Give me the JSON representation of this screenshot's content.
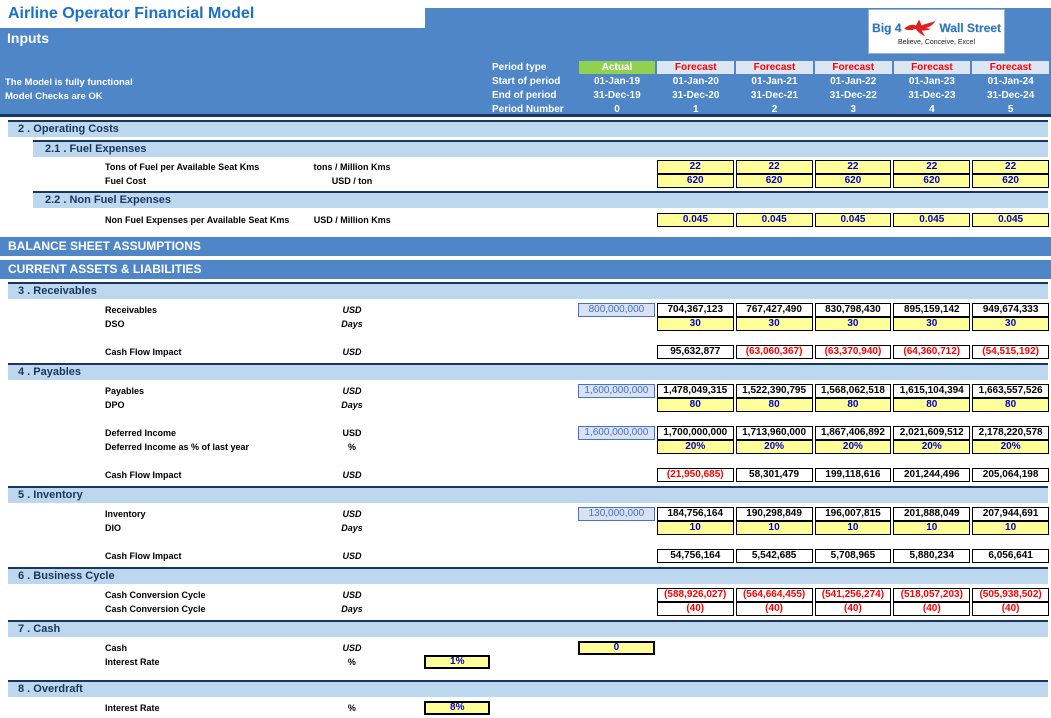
{
  "app": {
    "title": "Airline Operator Financial Model",
    "sheet_title": "Inputs",
    "status_line1": "The Model is fully functional",
    "status_line2": "Model Checks are OK"
  },
  "logo": {
    "brand_left": "Big 4",
    "brand_right": "Wall Street",
    "tagline": "Believe, Conceive, Excel"
  },
  "colors": {
    "banner_blue": "#4E86C8",
    "navy_rule": "#17375E",
    "section_bar": "#BDD7EE",
    "actual_green": "#92D050",
    "forecast_bg": "#DCE6F2",
    "forecast_text": "#FF0000",
    "input_bg": "#FFFF99",
    "input_text": "#0000CC",
    "linked_bg": "#D9E1F2",
    "linked_accent": "#4472C4",
    "negative_red": "#FF0000",
    "title_blue": "#1C70C9"
  },
  "period_header": {
    "labels": [
      "Period type",
      "Start of period",
      "End of period",
      "Period Number"
    ],
    "types": [
      "Actual",
      "Forecast",
      "Forecast",
      "Forecast",
      "Forecast",
      "Forecast"
    ],
    "start_dates": [
      "01-Jan-19",
      "01-Jan-20",
      "01-Jan-21",
      "01-Jan-22",
      "01-Jan-23",
      "01-Jan-24"
    ],
    "end_dates": [
      "31-Dec-19",
      "31-Dec-20",
      "31-Dec-21",
      "31-Dec-22",
      "31-Dec-23",
      "31-Dec-24"
    ],
    "numbers": [
      "0",
      "1",
      "2",
      "3",
      "4",
      "5"
    ]
  },
  "sections": [
    {
      "kind": "h1",
      "id": "operating-costs",
      "title": "2 . Operating Costs"
    },
    {
      "kind": "h2",
      "id": "fuel-expenses",
      "title": "2.1 . Fuel Expenses"
    },
    {
      "kind": "rows",
      "id": "fuel-rows",
      "rows": [
        {
          "label": "Tons of Fuel per Available Seat Kms",
          "unit": "tons / Million Kms",
          "unit_italic": false,
          "cells": [
            null,
            {
              "v": "22",
              "t": "input"
            },
            {
              "v": "22",
              "t": "input"
            },
            {
              "v": "22",
              "t": "input"
            },
            {
              "v": "22",
              "t": "input"
            },
            {
              "v": "22",
              "t": "input"
            }
          ]
        },
        {
          "label": "Fuel Cost",
          "unit": "USD / ton",
          "unit_italic": false,
          "cells": [
            null,
            {
              "v": "620",
              "t": "input"
            },
            {
              "v": "620",
              "t": "input"
            },
            {
              "v": "620",
              "t": "input"
            },
            {
              "v": "620",
              "t": "input"
            },
            {
              "v": "620",
              "t": "input"
            }
          ]
        }
      ]
    },
    {
      "kind": "h2",
      "id": "non-fuel-expenses",
      "title": "2.2 . Non Fuel Expenses"
    },
    {
      "kind": "rows",
      "id": "non-fuel-rows",
      "rows": [
        {
          "label": "Non Fuel Expenses per Available Seat Kms",
          "unit": "USD /  Million Kms",
          "unit_italic": false,
          "cells": [
            null,
            {
              "v": "0.045",
              "t": "input"
            },
            {
              "v": "0.045",
              "t": "input"
            },
            {
              "v": "0.045",
              "t": "input"
            },
            {
              "v": "0.045",
              "t": "input"
            },
            {
              "v": "0.045",
              "t": "input"
            }
          ]
        }
      ]
    },
    {
      "kind": "banner",
      "id": "balance-sheet-assumptions",
      "title": "BALANCE SHEET ASSUMPTIONS"
    },
    {
      "kind": "banner",
      "id": "current-assets-liabilities",
      "title": "CURRENT ASSETS & LIABILITIES"
    },
    {
      "kind": "h1",
      "id": "receivables",
      "title": "3 . Receivables"
    },
    {
      "kind": "rows",
      "id": "receivables-rows",
      "rows": [
        {
          "label": "Receivables",
          "unit": "USD",
          "unit_italic": true,
          "cells": [
            {
              "v": "800,000,000",
              "t": "linked"
            },
            {
              "v": "704,367,123",
              "t": "calc"
            },
            {
              "v": "767,427,490",
              "t": "calc"
            },
            {
              "v": "830,798,430",
              "t": "calc"
            },
            {
              "v": "895,159,142",
              "t": "calc"
            },
            {
              "v": "949,674,333",
              "t": "calc"
            }
          ]
        },
        {
          "label": "DSO",
          "unit": "Days",
          "unit_italic": true,
          "cells": [
            null,
            {
              "v": "30",
              "t": "input"
            },
            {
              "v": "30",
              "t": "input"
            },
            {
              "v": "30",
              "t": "input"
            },
            {
              "v": "30",
              "t": "input"
            },
            {
              "v": "30",
              "t": "input"
            }
          ]
        },
        {
          "spacer": true
        },
        {
          "label": "Cash Flow Impact",
          "unit": "USD",
          "unit_italic": true,
          "cells": [
            null,
            {
              "v": "95,632,877",
              "t": "calc"
            },
            {
              "v": "(63,060,367)",
              "t": "neg"
            },
            {
              "v": "(63,370,940)",
              "t": "neg"
            },
            {
              "v": "(64,360,712)",
              "t": "neg"
            },
            {
              "v": "(54,515,192)",
              "t": "neg"
            }
          ]
        }
      ]
    },
    {
      "kind": "h1",
      "id": "payables",
      "title": "4 . Payables"
    },
    {
      "kind": "rows",
      "id": "payables-rows",
      "rows": [
        {
          "label": "Payables",
          "unit": "USD",
          "unit_italic": true,
          "cells": [
            {
              "v": "1,600,000,000",
              "t": "linked"
            },
            {
              "v": "1,478,049,315",
              "t": "calc"
            },
            {
              "v": "1,522,390,795",
              "t": "calc"
            },
            {
              "v": "1,568,062,518",
              "t": "calc"
            },
            {
              "v": "1,615,104,394",
              "t": "calc"
            },
            {
              "v": "1,663,557,526",
              "t": "calc"
            }
          ]
        },
        {
          "label": "DPO",
          "unit": "Days",
          "unit_italic": true,
          "cells": [
            null,
            {
              "v": "80",
              "t": "input"
            },
            {
              "v": "80",
              "t": "input"
            },
            {
              "v": "80",
              "t": "input"
            },
            {
              "v": "80",
              "t": "input"
            },
            {
              "v": "80",
              "t": "input"
            }
          ]
        },
        {
          "spacer": true
        },
        {
          "label": "Deferred Income",
          "unit": "USD",
          "unit_italic": false,
          "cells": [
            {
              "v": "1,600,000,000",
              "t": "linked"
            },
            {
              "v": "1,700,000,000",
              "t": "calc"
            },
            {
              "v": "1,713,960,000",
              "t": "calc"
            },
            {
              "v": "1,867,406,892",
              "t": "calc"
            },
            {
              "v": "2,021,609,512",
              "t": "calc"
            },
            {
              "v": "2,178,220,578",
              "t": "calc"
            }
          ]
        },
        {
          "label": "Deferred Income as % of last year",
          "unit": "%",
          "unit_italic": false,
          "cells": [
            null,
            {
              "v": "20%",
              "t": "input"
            },
            {
              "v": "20%",
              "t": "input"
            },
            {
              "v": "20%",
              "t": "input"
            },
            {
              "v": "20%",
              "t": "input"
            },
            {
              "v": "20%",
              "t": "input"
            }
          ]
        },
        {
          "spacer": true
        },
        {
          "label": "Cash Flow Impact",
          "unit": "USD",
          "unit_italic": true,
          "cells": [
            null,
            {
              "v": "(21,950,685)",
              "t": "neg"
            },
            {
              "v": "58,301,479",
              "t": "calc"
            },
            {
              "v": "199,118,616",
              "t": "calc"
            },
            {
              "v": "201,244,496",
              "t": "calc"
            },
            {
              "v": "205,064,198",
              "t": "calc"
            }
          ]
        }
      ]
    },
    {
      "kind": "h1",
      "id": "inventory",
      "title": "5 . Inventory"
    },
    {
      "kind": "rows",
      "id": "inventory-rows",
      "rows": [
        {
          "label": "Inventory",
          "unit": "USD",
          "unit_italic": true,
          "cells": [
            {
              "v": "130,000,000",
              "t": "linked"
            },
            {
              "v": "184,756,164",
              "t": "calc"
            },
            {
              "v": "190,298,849",
              "t": "calc"
            },
            {
              "v": "196,007,815",
              "t": "calc"
            },
            {
              "v": "201,888,049",
              "t": "calc"
            },
            {
              "v": "207,944,691",
              "t": "calc"
            }
          ]
        },
        {
          "label": "DIO",
          "unit": "Days",
          "unit_italic": true,
          "cells": [
            null,
            {
              "v": "10",
              "t": "input"
            },
            {
              "v": "10",
              "t": "input"
            },
            {
              "v": "10",
              "t": "input"
            },
            {
              "v": "10",
              "t": "input"
            },
            {
              "v": "10",
              "t": "input"
            }
          ]
        },
        {
          "spacer": true
        },
        {
          "label": "Cash Flow Impact",
          "unit": "USD",
          "unit_italic": true,
          "cells": [
            null,
            {
              "v": "54,756,164",
              "t": "calc"
            },
            {
              "v": "5,542,685",
              "t": "calc"
            },
            {
              "v": "5,708,965",
              "t": "calc"
            },
            {
              "v": "5,880,234",
              "t": "calc"
            },
            {
              "v": "6,056,641",
              "t": "calc"
            }
          ]
        }
      ]
    },
    {
      "kind": "h1",
      "id": "business-cycle",
      "title": "6 . Business Cycle"
    },
    {
      "kind": "rows",
      "id": "business-cycle-rows",
      "rows": [
        {
          "label": "Cash Conversion Cycle",
          "unit": "USD",
          "unit_italic": true,
          "cells": [
            null,
            {
              "v": "(588,926,027)",
              "t": "neg"
            },
            {
              "v": "(564,664,455)",
              "t": "neg"
            },
            {
              "v": "(541,256,274)",
              "t": "neg"
            },
            {
              "v": "(518,057,203)",
              "t": "neg"
            },
            {
              "v": "(505,938,502)",
              "t": "neg"
            }
          ]
        },
        {
          "label": "Cash Conversion Cycle",
          "unit": "Days",
          "unit_italic": true,
          "cells": [
            null,
            {
              "v": "(40)",
              "t": "neg"
            },
            {
              "v": "(40)",
              "t": "neg"
            },
            {
              "v": "(40)",
              "t": "neg"
            },
            {
              "v": "(40)",
              "t": "neg"
            },
            {
              "v": "(40)",
              "t": "neg"
            }
          ]
        }
      ]
    },
    {
      "kind": "h1",
      "id": "cash",
      "title": "7 . Cash"
    },
    {
      "kind": "rows",
      "id": "cash-rows",
      "rows": [
        {
          "label": "Cash",
          "unit": "USD",
          "unit_italic": true,
          "cells": [
            {
              "v": "0",
              "t": "input",
              "big": true
            },
            null,
            null,
            null,
            null,
            null
          ]
        },
        {
          "label": "Interest Rate",
          "unit": "%",
          "unit_italic": false,
          "pre": {
            "v": "1%",
            "t": "input",
            "big": true
          },
          "cells": [
            null,
            null,
            null,
            null,
            null,
            null
          ]
        }
      ]
    },
    {
      "kind": "h1",
      "id": "overdraft",
      "title": "8 . Overdraft"
    },
    {
      "kind": "rows",
      "id": "overdraft-rows",
      "rows": [
        {
          "label": "Interest Rate",
          "unit": "%",
          "unit_italic": false,
          "pre": {
            "v": "8%",
            "t": "input",
            "big": true
          },
          "cells": [
            null,
            null,
            null,
            null,
            null,
            null
          ]
        }
      ]
    }
  ]
}
